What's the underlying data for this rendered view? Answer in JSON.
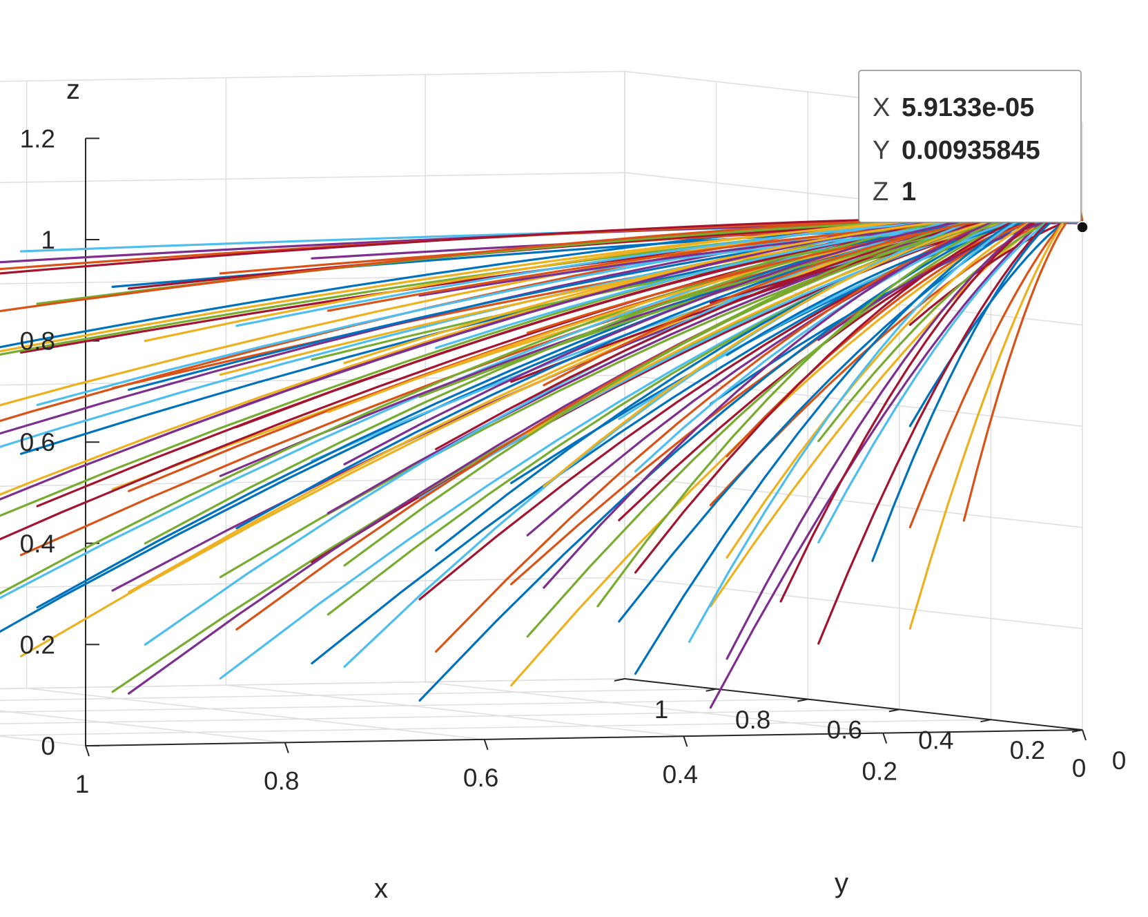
{
  "chart_data": {
    "type": "line",
    "view": "3d",
    "description_units": "x, y, z in data units",
    "axes": {
      "x": {
        "label": "x",
        "lim": [
          0,
          1
        ],
        "ticks": [
          "0",
          "0.2",
          "0.4",
          "0.6",
          "0.8",
          "1"
        ]
      },
      "y": {
        "label": "y",
        "lim": [
          0,
          1
        ],
        "ticks": [
          "0",
          "0.2",
          "0.4",
          "0.6",
          "0.8",
          "1"
        ]
      },
      "z": {
        "label": "z",
        "lim": [
          0,
          1.2
        ],
        "ticks": [
          "0",
          "0.2",
          "0.4",
          "0.6",
          "0.8",
          "1",
          "1.2"
        ]
      }
    },
    "grid": true,
    "colors": [
      "#0072BD",
      "#D95319",
      "#EDB120",
      "#7E2F8E",
      "#77AC30",
      "#4DBEEE",
      "#A2142F"
    ],
    "series": [
      {
        "start": [
          0.95,
          0.05,
          0.9
        ]
      },
      {
        "start": [
          0.95,
          0.05,
          0.7
        ]
      },
      {
        "start": [
          0.95,
          0.05,
          0.5
        ]
      },
      {
        "start": [
          0.95,
          0.05,
          0.3
        ]
      },
      {
        "start": [
          0.95,
          0.05,
          0.1
        ]
      },
      {
        "start": [
          0.95,
          0.25,
          0.95
        ]
      },
      {
        "start": [
          0.95,
          0.25,
          0.75
        ]
      },
      {
        "start": [
          0.95,
          0.25,
          0.55
        ]
      },
      {
        "start": [
          0.95,
          0.25,
          0.35
        ]
      },
      {
        "start": [
          0.95,
          0.25,
          0.15
        ]
      },
      {
        "start": [
          0.95,
          0.45,
          0.9
        ]
      },
      {
        "start": [
          0.95,
          0.45,
          0.7
        ]
      },
      {
        "start": [
          0.95,
          0.45,
          0.5
        ]
      },
      {
        "start": [
          0.95,
          0.45,
          0.3
        ]
      },
      {
        "start": [
          0.95,
          0.45,
          0.1
        ]
      },
      {
        "start": [
          0.95,
          0.65,
          0.85
        ]
      },
      {
        "start": [
          0.95,
          0.65,
          0.65
        ]
      },
      {
        "start": [
          0.95,
          0.65,
          0.45
        ]
      },
      {
        "start": [
          0.95,
          0.65,
          0.25
        ]
      },
      {
        "start": [
          0.95,
          0.65,
          0.05
        ]
      },
      {
        "start": [
          0.95,
          0.85,
          0.8
        ]
      },
      {
        "start": [
          0.95,
          0.85,
          0.6
        ]
      },
      {
        "start": [
          0.95,
          0.85,
          0.4
        ]
      },
      {
        "start": [
          0.95,
          0.85,
          0.2
        ]
      },
      {
        "start": [
          0.75,
          0.05,
          0.95
        ]
      },
      {
        "start": [
          0.75,
          0.05,
          0.75
        ]
      },
      {
        "start": [
          0.75,
          0.05,
          0.55
        ]
      },
      {
        "start": [
          0.75,
          0.05,
          0.35
        ]
      },
      {
        "start": [
          0.75,
          0.05,
          0.15
        ]
      },
      {
        "start": [
          0.75,
          0.25,
          0.9
        ]
      },
      {
        "start": [
          0.75,
          0.25,
          0.7
        ]
      },
      {
        "start": [
          0.75,
          0.25,
          0.5
        ]
      },
      {
        "start": [
          0.75,
          0.25,
          0.3
        ]
      },
      {
        "start": [
          0.75,
          0.25,
          0.1
        ]
      },
      {
        "start": [
          0.75,
          0.45,
          0.85
        ]
      },
      {
        "start": [
          0.75,
          0.45,
          0.65
        ]
      },
      {
        "start": [
          0.75,
          0.45,
          0.45
        ]
      },
      {
        "start": [
          0.75,
          0.45,
          0.25
        ]
      },
      {
        "start": [
          0.75,
          0.45,
          0.05
        ]
      },
      {
        "start": [
          0.75,
          0.65,
          0.8
        ]
      },
      {
        "start": [
          0.75,
          0.65,
          0.6
        ]
      },
      {
        "start": [
          0.75,
          0.65,
          0.4
        ]
      },
      {
        "start": [
          0.75,
          0.65,
          0.2
        ]
      },
      {
        "start": [
          0.75,
          0.85,
          0.75
        ]
      },
      {
        "start": [
          0.75,
          0.85,
          0.55
        ]
      },
      {
        "start": [
          0.75,
          0.85,
          0.35
        ]
      },
      {
        "start": [
          0.75,
          0.85,
          0.15
        ]
      },
      {
        "start": [
          0.55,
          0.05,
          0.9
        ]
      },
      {
        "start": [
          0.55,
          0.05,
          0.7
        ]
      },
      {
        "start": [
          0.55,
          0.05,
          0.5
        ]
      },
      {
        "start": [
          0.55,
          0.05,
          0.3
        ]
      },
      {
        "start": [
          0.55,
          0.05,
          0.1
        ]
      },
      {
        "start": [
          0.55,
          0.25,
          0.85
        ]
      },
      {
        "start": [
          0.55,
          0.25,
          0.65
        ]
      },
      {
        "start": [
          0.55,
          0.25,
          0.45
        ]
      },
      {
        "start": [
          0.55,
          0.25,
          0.25
        ]
      },
      {
        "start": [
          0.55,
          0.25,
          0.05
        ]
      },
      {
        "start": [
          0.55,
          0.45,
          0.8
        ]
      },
      {
        "start": [
          0.55,
          0.45,
          0.6
        ]
      },
      {
        "start": [
          0.55,
          0.45,
          0.4
        ]
      },
      {
        "start": [
          0.55,
          0.45,
          0.2
        ]
      },
      {
        "start": [
          0.55,
          0.65,
          0.75
        ]
      },
      {
        "start": [
          0.55,
          0.65,
          0.55
        ]
      },
      {
        "start": [
          0.55,
          0.65,
          0.35
        ]
      },
      {
        "start": [
          0.55,
          0.65,
          0.15
        ]
      },
      {
        "start": [
          0.55,
          0.85,
          0.7
        ]
      },
      {
        "start": [
          0.55,
          0.85,
          0.5
        ]
      },
      {
        "start": [
          0.55,
          0.85,
          0.3
        ]
      },
      {
        "start": [
          0.55,
          0.85,
          0.1
        ]
      },
      {
        "start": [
          0.35,
          0.05,
          0.85
        ]
      },
      {
        "start": [
          0.35,
          0.05,
          0.65
        ]
      },
      {
        "start": [
          0.35,
          0.05,
          0.45
        ]
      },
      {
        "start": [
          0.35,
          0.05,
          0.25
        ]
      },
      {
        "start": [
          0.35,
          0.05,
          0.05
        ]
      },
      {
        "start": [
          0.35,
          0.25,
          0.8
        ]
      },
      {
        "start": [
          0.35,
          0.25,
          0.6
        ]
      },
      {
        "start": [
          0.35,
          0.25,
          0.4
        ]
      },
      {
        "start": [
          0.35,
          0.25,
          0.2
        ]
      },
      {
        "start": [
          0.35,
          0.45,
          0.75
        ]
      },
      {
        "start": [
          0.35,
          0.45,
          0.55
        ]
      },
      {
        "start": [
          0.35,
          0.45,
          0.35
        ]
      },
      {
        "start": [
          0.35,
          0.45,
          0.15
        ]
      },
      {
        "start": [
          0.35,
          0.65,
          0.7
        ]
      },
      {
        "start": [
          0.35,
          0.65,
          0.5
        ]
      },
      {
        "start": [
          0.35,
          0.65,
          0.3
        ]
      },
      {
        "start": [
          0.35,
          0.65,
          0.1
        ]
      },
      {
        "start": [
          0.35,
          0.85,
          0.65
        ]
      },
      {
        "start": [
          0.35,
          0.85,
          0.45
        ]
      },
      {
        "start": [
          0.35,
          0.85,
          0.25
        ]
      },
      {
        "start": [
          0.35,
          0.85,
          0.05
        ]
      },
      {
        "start": [
          0.15,
          0.05,
          0.8
        ]
      },
      {
        "start": [
          0.15,
          0.05,
          0.6
        ]
      },
      {
        "start": [
          0.15,
          0.05,
          0.4
        ]
      },
      {
        "start": [
          0.15,
          0.05,
          0.2
        ]
      },
      {
        "start": [
          0.15,
          0.25,
          0.75
        ]
      },
      {
        "start": [
          0.15,
          0.25,
          0.55
        ]
      },
      {
        "start": [
          0.15,
          0.25,
          0.35
        ]
      },
      {
        "start": [
          0.15,
          0.25,
          0.15
        ]
      },
      {
        "start": [
          0.15,
          0.45,
          0.7
        ]
      },
      {
        "start": [
          0.15,
          0.45,
          0.5
        ]
      },
      {
        "start": [
          0.15,
          0.45,
          0.3
        ]
      },
      {
        "start": [
          0.15,
          0.45,
          0.1
        ]
      },
      {
        "start": [
          0.15,
          0.65,
          0.65
        ]
      },
      {
        "start": [
          0.15,
          0.65,
          0.45
        ]
      },
      {
        "start": [
          0.15,
          0.65,
          0.25
        ]
      },
      {
        "start": [
          0.15,
          0.65,
          0.05
        ]
      },
      {
        "start": [
          0.15,
          0.85,
          0.6
        ]
      },
      {
        "start": [
          0.15,
          0.85,
          0.4
        ]
      },
      {
        "start": [
          0.15,
          0.85,
          0.2
        ]
      },
      {
        "start": [
          0.05,
          0.95,
          0.15
        ]
      },
      {
        "start": [
          0.05,
          0.75,
          0.1
        ]
      },
      {
        "start": [
          0.05,
          0.55,
          0.2
        ]
      },
      {
        "start": [
          0.05,
          0.35,
          0.3
        ]
      },
      {
        "start": [
          0.05,
          0.15,
          0.4
        ]
      }
    ],
    "end_point": [
      0,
      0,
      1
    ],
    "datatip": {
      "point": [
        5.91e-05,
        0.00936,
        1
      ],
      "rows": [
        {
          "key": "X",
          "value": "5.9133e-05"
        },
        {
          "key": "Y",
          "value": "0.00935845"
        },
        {
          "key": "Z",
          "value": "1"
        }
      ],
      "value_color": "#1E90D8"
    }
  }
}
